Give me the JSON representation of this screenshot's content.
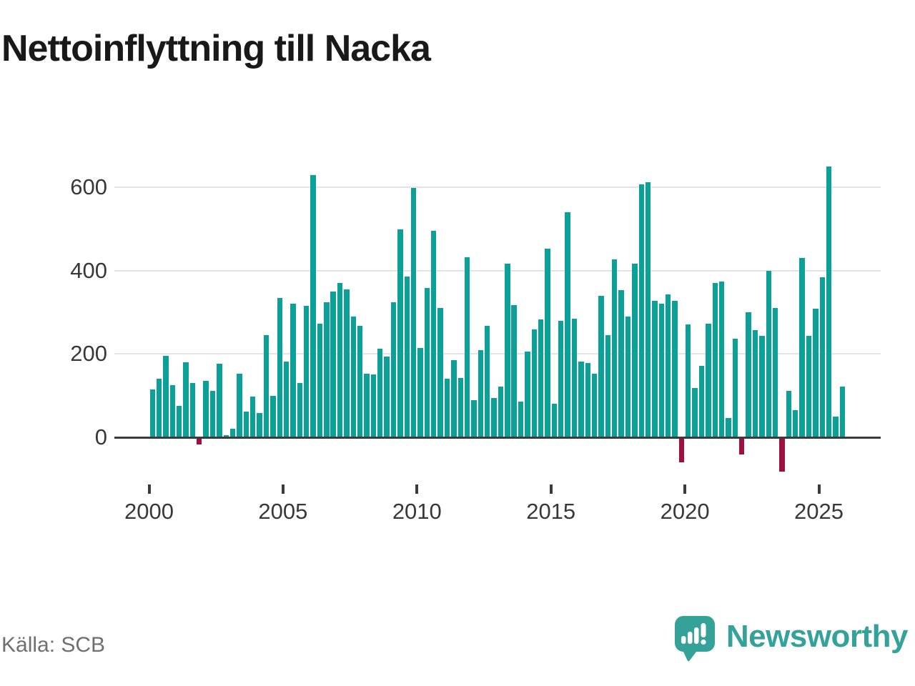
{
  "title": "Nettoinflyttning till Nacka",
  "source": "Källa: SCB",
  "logo": {
    "text": "Newsworthy",
    "icon": "newsworthy-speech-bubble-bar-chart-icon"
  },
  "colors": {
    "bar_positive": "#0ba198",
    "bar_negative": "#9e1041",
    "axis_line": "#3b3b3b",
    "gridline": "#e4e4e4",
    "title_text": "#191919",
    "axis_text": "#383838",
    "muted_text": "#6f6f6f",
    "brand_teal": "#35a29a",
    "background": "#ffffff"
  },
  "chart_data": {
    "type": "bar",
    "title": "Nettoinflyttning till Nacka",
    "unit": "persons (net migration per quarter)",
    "frequency": "quarterly",
    "start_period": "2000 Q1",
    "end_period": "2025 Q4",
    "values": [
      115,
      140,
      195,
      125,
      75,
      180,
      130,
      -15,
      135,
      112,
      177,
      6,
      20,
      153,
      61,
      98,
      58,
      246,
      100,
      335,
      182,
      321,
      130,
      316,
      630,
      272,
      324,
      350,
      371,
      355,
      290,
      267,
      153,
      151,
      212,
      194,
      324,
      500,
      386,
      599,
      214,
      359,
      495,
      311,
      141,
      185,
      143,
      432,
      89,
      210,
      267,
      95,
      121,
      416,
      317,
      85,
      205,
      259,
      283,
      452,
      80,
      280,
      540,
      284,
      181,
      178,
      152,
      340,
      245,
      427,
      354,
      290,
      416,
      607,
      613,
      327,
      321,
      343,
      327,
      -57,
      271,
      119,
      171,
      272,
      370,
      374,
      46,
      237,
      -38,
      301,
      257,
      244,
      399,
      310,
      -80,
      112,
      66,
      430,
      244,
      309,
      384,
      650,
      50,
      121
    ],
    "y_ticks": [
      0,
      200,
      400,
      600
    ],
    "x_tick_years": [
      2000,
      2005,
      2010,
      2015,
      2020,
      2025
    ],
    "ylim": [
      -100,
      660
    ],
    "grid": "horizontal",
    "legend": "none",
    "negative_bars_highlighted": true
  }
}
